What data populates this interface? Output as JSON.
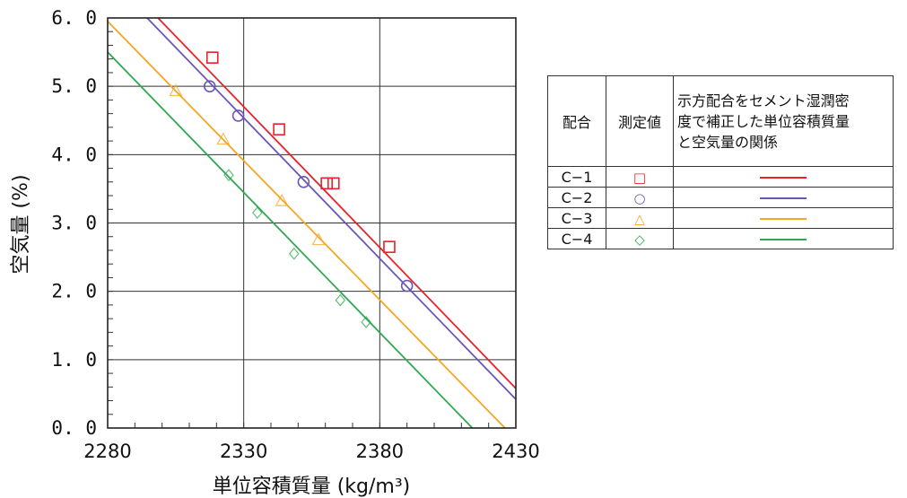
{
  "chart_data": {
    "type": "scatter",
    "xlabel": "単位容積質量 (kg/m³)",
    "ylabel": "空気量 (%)",
    "xlim": [
      2280,
      2430
    ],
    "ylim": [
      0.0,
      6.0
    ],
    "x_ticks": [
      "2280",
      "2330",
      "2380",
      "2430"
    ],
    "y_ticks": [
      "0. 0",
      "1. 0",
      "2. 0",
      "3. 0",
      "4. 0",
      "5. 0",
      "6. 0"
    ],
    "grid": true,
    "series": [
      {
        "name": "C-1",
        "marker": "square",
        "color": "#e8212a",
        "points": [
          [
            2318.5,
            5.42
          ],
          [
            2343,
            4.37
          ],
          [
            2360.5,
            3.58
          ],
          [
            2363,
            3.58
          ],
          [
            2383.5,
            2.65
          ]
        ],
        "line": [
          [
            2298.5,
            6.0
          ],
          [
            2430,
            0.58
          ]
        ]
      },
      {
        "name": "C-2",
        "marker": "circle",
        "color": "#6a55b8",
        "points": [
          [
            2317.5,
            5.0
          ],
          [
            2328,
            4.57
          ],
          [
            2352,
            3.6
          ],
          [
            2390,
            2.08
          ]
        ],
        "line": [
          [
            2294.5,
            6.0
          ],
          [
            2430,
            0.42
          ]
        ]
      },
      {
        "name": "C-3",
        "marker": "triangle",
        "color": "#f5a623",
        "points": [
          [
            2305,
            4.93
          ],
          [
            2322.5,
            4.22
          ],
          [
            2344,
            3.32
          ],
          [
            2357.5,
            2.75
          ]
        ],
        "line": [
          [
            2280,
            5.95
          ],
          [
            2426,
            0.0
          ]
        ]
      },
      {
        "name": "C-4",
        "marker": "diamond",
        "color": "#2fa84f",
        "points": [
          [
            2324.5,
            3.7
          ],
          [
            2335,
            3.15
          ],
          [
            2348.5,
            2.55
          ],
          [
            2365.5,
            1.87
          ],
          [
            2375,
            1.55
          ]
        ],
        "line": [
          [
            2280,
            5.5
          ],
          [
            2414,
            0.0
          ]
        ]
      }
    ]
  },
  "legend": {
    "col_config": "配合",
    "col_measured": "測定値",
    "col_desc": [
      "示方配合をセメント湿潤密",
      "度で補正した単位容積質量",
      "と空気量の関係"
    ],
    "rows": [
      {
        "label": "C−1",
        "symbol": "□",
        "color": "#e8212a"
      },
      {
        "label": "C−2",
        "symbol": "○",
        "color": "#6a55b8"
      },
      {
        "label": "C−3",
        "symbol": "△",
        "color": "#f5a623"
      },
      {
        "label": "C−4",
        "symbol": "◇",
        "color": "#2fa84f"
      }
    ]
  }
}
